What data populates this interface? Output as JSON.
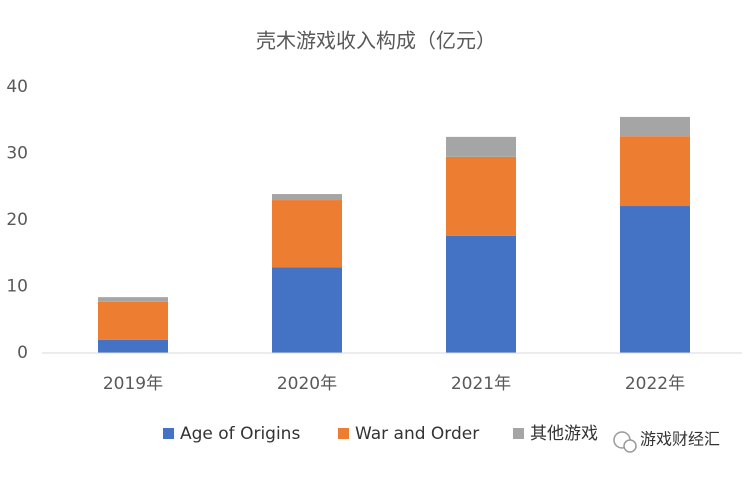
{
  "chart_data": {
    "type": "stacked_bar",
    "title": "壳木游戏收入构成（亿元）",
    "categories": [
      "2019年",
      "2020年",
      "2021年",
      "2022年"
    ],
    "series": [
      {
        "name": "Age of Origins",
        "color": "#4472c4",
        "values": [
          2.0,
          12.9,
          17.6,
          22.1
        ]
      },
      {
        "name": "War and Order",
        "color": "#ed7d31",
        "values": [
          5.7,
          10.1,
          11.9,
          10.5
        ]
      },
      {
        "name": "其他游戏",
        "color": "#a5a5a5",
        "values": [
          0.7,
          0.9,
          3.0,
          2.9
        ]
      }
    ],
    "ylim": [
      0,
      40
    ],
    "yticks": [
      0,
      10,
      20,
      30,
      40
    ],
    "grid": false,
    "legend": "bottom",
    "watermark": "游戏财经汇"
  }
}
